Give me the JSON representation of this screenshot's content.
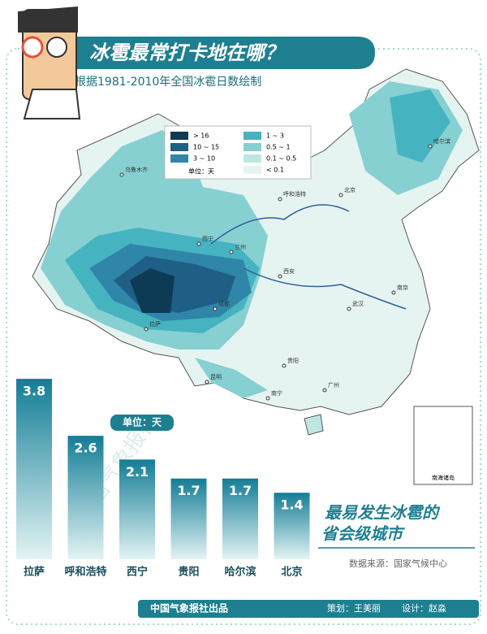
{
  "header": {
    "title": "冰雹最常打卡地在哪？",
    "subtitle": "根据1981-2010年全国冰雹日数绘制"
  },
  "map": {
    "legend": [
      {
        "label": "> 16",
        "color": "#0d3a55"
      },
      {
        "label": "10 ~ 15",
        "color": "#1f5f85"
      },
      {
        "label": "3 ~ 10",
        "color": "#2f86a8"
      },
      {
        "label": "1 ~ 3",
        "color": "#46b3c0"
      },
      {
        "label": "0.5 ~ 1",
        "color": "#86d0d2"
      },
      {
        "label": "0.1 ~ 0.5",
        "color": "#bfe6e3"
      },
      {
        "label": "< 0.1",
        "color": "#e6f4f1"
      }
    ],
    "unit": "单位：天",
    "cities": [
      "乌鲁木齐",
      "拉萨",
      "西宁",
      "兰州",
      "呼和浩特",
      "哈尔滨",
      "北京",
      "西安",
      "成都",
      "贵阳",
      "昆明",
      "武汉",
      "南京",
      "广州",
      "南宁"
    ],
    "inset": "南海诸岛"
  },
  "chart_data": {
    "type": "bar",
    "title": [
      "最易发生冰雹的",
      "省会级城市"
    ],
    "unit": "单位：天",
    "categories": [
      "拉萨",
      "呼和浩特",
      "西宁",
      "贵阳",
      "哈尔滨",
      "北京"
    ],
    "values": [
      3.8,
      2.6,
      2.1,
      1.7,
      1.7,
      1.4
    ],
    "color": "#1f8ea3"
  },
  "source": "数据来源：国家气候中心",
  "watermark": "中国气象报社",
  "footer": {
    "publisher": "中国气象报社出品",
    "planner": "策划：王美丽",
    "designer": "设计：赵淼"
  }
}
